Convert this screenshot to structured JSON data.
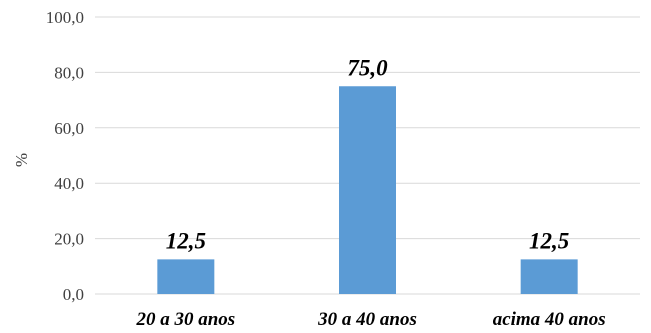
{
  "chart_data": {
    "type": "bar",
    "categories": [
      "20 a 30 anos",
      "30 a 40 anos",
      "acima 40 anos"
    ],
    "values": [
      12.5,
      75.0,
      12.5
    ],
    "data_labels": [
      "12,5",
      "75,0",
      "12,5"
    ],
    "title": "",
    "xlabel": "",
    "ylabel": "%",
    "ylim": [
      0,
      100
    ],
    "yticks": [
      0,
      20,
      40,
      60,
      80,
      100
    ],
    "ytick_labels": [
      "0,0",
      "20,0",
      "40,0",
      "60,0",
      "80,0",
      "100,0"
    ],
    "grid": true,
    "legend": "none",
    "bar_color": "#5b9bd5"
  }
}
